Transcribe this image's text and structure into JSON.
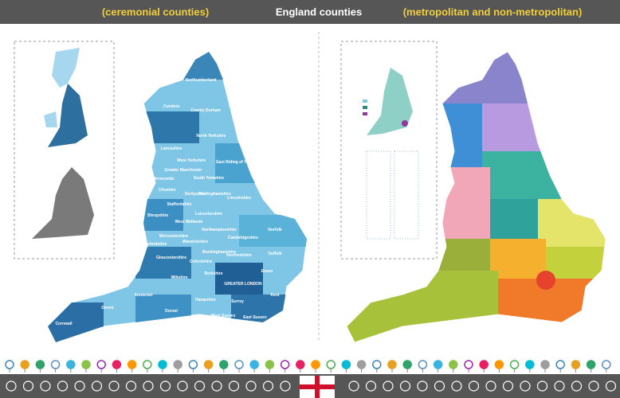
{
  "header": {
    "left_title": "(ceremonial counties)",
    "center_title": "England counties",
    "right_title": "(metropolitan and non-metropolitan)"
  },
  "left_map": {
    "labels": [
      "Northumberland",
      "Cumbria",
      "County Durham",
      "North Yorkshire",
      "Lancashire",
      "West Yorkshire",
      "East Riding of Yorkshire",
      "Greater Manchester",
      "Merseyside",
      "South Yorkshire",
      "Lincolnshire",
      "Cheshire",
      "Derbyshire",
      "Nottinghamshire",
      "Staffordshire",
      "Leicestershire",
      "Shropshire",
      "Norfolk",
      "West Midlands",
      "Northamptonshire",
      "Cambridgeshire",
      "Suffolk",
      "Herefordshire",
      "Worcestershire",
      "Warwickshire",
      "Gloucestershire",
      "Oxfordshire",
      "Buckinghamshire",
      "Hertfordshire",
      "Essex",
      "Wiltshire",
      "Berkshire",
      "GREATER LONDON",
      "Kent",
      "Somerset",
      "Hampshire",
      "Surrey",
      "Devon",
      "Dorset",
      "West Sussex",
      "East Sussex",
      "Cornwall"
    ]
  }
}
